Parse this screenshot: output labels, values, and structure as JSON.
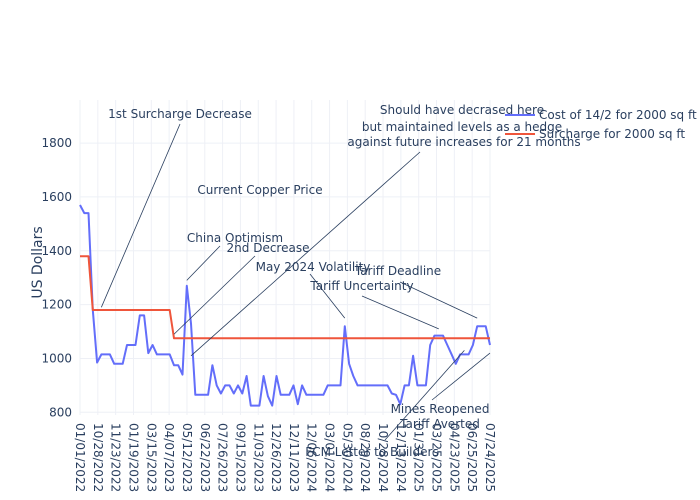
{
  "chart_data": {
    "type": "line",
    "title": "",
    "xlabel": "",
    "ylabel": "US Dollars",
    "ylim": [
      790,
      1960
    ],
    "yticks": [
      800,
      1000,
      1200,
      1400,
      1600,
      1800
    ],
    "xticks": [
      "01/01/2022",
      "10/28/2022",
      "11/23/2022",
      "01/19/2023",
      "03/15/2023",
      "04/07/2023",
      "05/12/2023",
      "06/22/2023",
      "07/26/2023",
      "09/15/2023",
      "11/03/2023",
      "12/26/2023",
      "12/11/2023",
      "12/06/2024",
      "03/01/2024",
      "05/30/2024",
      "08/29/2024",
      "10/28/2024",
      "12/13/2024",
      "01/31/2025",
      "03/25/2025",
      "04/23/2025",
      "06/25/2025",
      "07/24/2025"
    ],
    "series": [
      {
        "name": "Cost of 14/2 for 2000 sq ft",
        "color": "#636efa",
        "values": [
          1570,
          1540,
          1540,
          1180,
          985,
          1015,
          1015,
          1015,
          980,
          980,
          980,
          1050,
          1050,
          1050,
          1160,
          1160,
          1020,
          1050,
          1015,
          1015,
          1015,
          1015,
          975,
          975,
          940,
          1270,
          1130,
          865,
          865,
          865,
          865,
          975,
          900,
          870,
          900,
          900,
          870,
          900,
          870,
          935,
          825,
          825,
          825,
          935,
          860,
          825,
          935,
          865,
          865,
          865,
          900,
          830,
          900,
          865,
          865,
          865,
          865,
          865,
          900,
          900,
          900,
          900,
          1120,
          980,
          935,
          900,
          900,
          900,
          900,
          900,
          900,
          900,
          900,
          870,
          865,
          830,
          900,
          900,
          1010,
          900,
          900,
          900,
          1050,
          1085,
          1085,
          1085,
          1050,
          1015,
          980,
          1015,
          1015,
          1015,
          1050,
          1120,
          1120,
          1120,
          1050
        ]
      },
      {
        "name": "Surcharge for 2000 sq ft",
        "color": "#ef553b",
        "values": [
          1380,
          1380,
          1380,
          1180,
          1180,
          1180,
          1180,
          1180,
          1180,
          1180,
          1180,
          1180,
          1180,
          1180,
          1180,
          1180,
          1180,
          1180,
          1180,
          1180,
          1180,
          1180,
          1075,
          1075,
          1075,
          1075,
          1075,
          1075,
          1075,
          1075,
          1075,
          1075,
          1075,
          1075,
          1075,
          1075,
          1075,
          1075,
          1075,
          1075,
          1075,
          1075,
          1075,
          1075,
          1075,
          1075,
          1075,
          1075,
          1075,
          1075,
          1075,
          1075,
          1075,
          1075,
          1075,
          1075,
          1075,
          1075,
          1075,
          1075,
          1075,
          1075,
          1075,
          1075,
          1075,
          1075,
          1075,
          1075,
          1075,
          1075,
          1075,
          1075,
          1075,
          1075,
          1075,
          1075,
          1075,
          1075,
          1075,
          1075,
          1075,
          1075,
          1075,
          1075,
          1075,
          1075,
          1075,
          1075,
          1075,
          1075,
          1075,
          1075,
          1075,
          1075,
          1075,
          1075,
          1075
        ]
      }
    ],
    "annotations": [
      {
        "text": "1st Surcharge Decrease",
        "point_index": 5,
        "point_value": 1190
      },
      {
        "text": "Current Copper Price",
        "point_index": null,
        "point_value": null
      },
      {
        "text": "China Optimism",
        "point_index": 25,
        "point_value": 1290
      },
      {
        "text": "2nd Decrease",
        "point_index": 22,
        "point_value": 1090
      },
      {
        "text": "May 2024 Volatility",
        "point_index": 62,
        "point_value": 1150
      },
      {
        "text": "Tariff Uncertainty",
        "point_index": 84,
        "point_value": 1110
      },
      {
        "text": "Tariff Deadline",
        "point_index": 93,
        "point_value": 1150
      },
      {
        "text": "Mines Reopened",
        "point_index": 96,
        "point_value": 1020
      },
      {
        "text": "Tariff Averted",
        "point_index": 96,
        "point_value": 1020
      },
      {
        "text": "FCM Letter to Builders",
        "point_index": 90,
        "point_value": 1030
      },
      {
        "text": "Should have decrased here",
        "point_index": 26,
        "point_value": 1010
      },
      {
        "text": "but maintained levels as a hedge",
        "point_index": 26,
        "point_value": 1010
      },
      {
        "text": "against future increases for 21 months",
        "point_index": 26,
        "point_value": 1010
      }
    ],
    "legend_placement": "top-right",
    "grid": true
  }
}
